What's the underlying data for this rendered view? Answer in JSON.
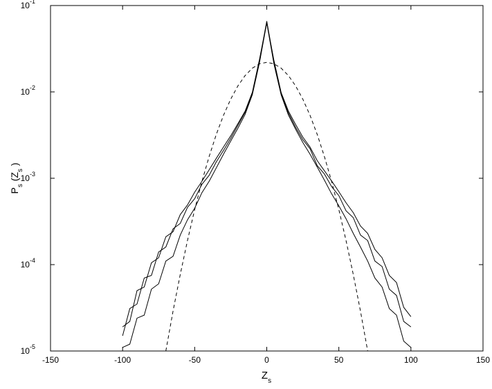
{
  "chart_data": {
    "type": "line",
    "xlabel": [
      {
        "text": "Z"
      },
      {
        "text": "s",
        "sub": true
      }
    ],
    "ylabel": [
      {
        "text": "P"
      },
      {
        "text": "s",
        "sub": true
      },
      {
        "text": " (Z"
      },
      {
        "text": "s",
        "sub": true
      },
      {
        "text": " )"
      }
    ],
    "xlim": [
      -150,
      150
    ],
    "xticks": [
      -150,
      -100,
      -50,
      0,
      50,
      100,
      150
    ],
    "ylim": [
      1e-05,
      0.1
    ],
    "ylog": true,
    "yticks": [
      {
        "value": 1e-05,
        "label": "10",
        "exponent": "-5"
      },
      {
        "value": 0.0001,
        "label": "10",
        "exponent": "-4"
      },
      {
        "value": 0.001,
        "label": "10",
        "exponent": "-3"
      },
      {
        "value": 0.01,
        "label": "10",
        "exponent": "-2"
      },
      {
        "value": 0.1,
        "label": "10",
        "exponent": "-1"
      }
    ],
    "x": [
      -100,
      -95,
      -90,
      -85,
      -80,
      -75,
      -70,
      -65,
      -60,
      -55,
      -50,
      -45,
      -40,
      -35,
      -30,
      -25,
      -20,
      -15,
      -10,
      -5,
      0,
      5,
      10,
      15,
      20,
      25,
      30,
      35,
      40,
      45,
      50,
      55,
      60,
      65,
      70,
      75,
      80,
      85,
      90,
      95,
      100
    ],
    "series": [
      {
        "color": "#000000",
        "dash": false,
        "values": [
          1.5e-05,
          3.1e-05,
          3.5e-05,
          7e-05,
          7.5e-05,
          0.00014,
          0.00016,
          0.00026,
          0.0003,
          0.00046,
          0.00058,
          0.00085,
          0.00108,
          0.00155,
          0.0021,
          0.0029,
          0.0041,
          0.0058,
          0.0097,
          0.023,
          0.066,
          0.022,
          0.0094,
          0.0057,
          0.0039,
          0.0028,
          0.0022,
          0.0014,
          0.00112,
          0.0008,
          0.00063,
          0.00042,
          0.00035,
          0.00022,
          0.00019,
          0.00011,
          9.5e-05,
          5.2e-05,
          4.4e-05,
          2.2e-05,
          1.9e-05
        ]
      },
      {
        "color": "#000000",
        "dash": false,
        "values": [
          1.9e-05,
          2.2e-05,
          5e-05,
          5.5e-05,
          0.000105,
          0.00012,
          0.00021,
          0.00024,
          0.00038,
          0.00049,
          0.00069,
          0.00092,
          0.00125,
          0.0017,
          0.0023,
          0.0031,
          0.0043,
          0.006,
          0.0099,
          0.024,
          0.064,
          0.023,
          0.0098,
          0.006,
          0.0042,
          0.003,
          0.0023,
          0.0016,
          0.00122,
          0.00093,
          0.0007,
          0.00052,
          0.0004,
          0.00028,
          0.00023,
          0.00015,
          0.00012,
          7.5e-05,
          6.2e-05,
          3.2e-05,
          2.5e-05
        ]
      },
      {
        "color": "#000000",
        "dash": false,
        "values": [
          1.1e-05,
          1.2e-05,
          2.4e-05,
          2.6e-05,
          5.2e-05,
          6e-05,
          0.00011,
          0.000125,
          0.00022,
          0.00033,
          0.00045,
          0.00068,
          0.00092,
          0.00132,
          0.0019,
          0.0027,
          0.0038,
          0.0055,
          0.0093,
          0.022,
          0.063,
          0.021,
          0.0092,
          0.0054,
          0.0037,
          0.0026,
          0.0019,
          0.00135,
          0.00095,
          0.00066,
          0.00048,
          0.00034,
          0.00023,
          0.00016,
          0.00011,
          7e-05,
          5.5e-05,
          3.1e-05,
          2.6e-05,
          1.3e-05,
          1.1e-05
        ]
      },
      {
        "color": "#000000",
        "dash": true,
        "x": [
          -70,
          -65,
          -60,
          -55,
          -50,
          -45,
          -40,
          -35,
          -30,
          -25,
          -20,
          -15,
          -10,
          -5,
          0,
          5,
          10,
          15,
          20,
          25,
          30,
          35,
          40,
          45,
          50,
          55,
          60,
          65,
          70
        ],
        "values": [
          1e-05,
          2.9e-05,
          7.7e-05,
          0.00019,
          0.000434,
          0.000916,
          0.00178,
          0.00322,
          0.00536,
          0.00825,
          0.01174,
          0.01546,
          0.01881,
          0.02115,
          0.022,
          0.02115,
          0.01881,
          0.01546,
          0.01174,
          0.00825,
          0.00536,
          0.00322,
          0.00178,
          0.000916,
          0.000434,
          0.00019,
          7.7e-05,
          2.9e-05,
          1e-05
        ]
      }
    ]
  }
}
